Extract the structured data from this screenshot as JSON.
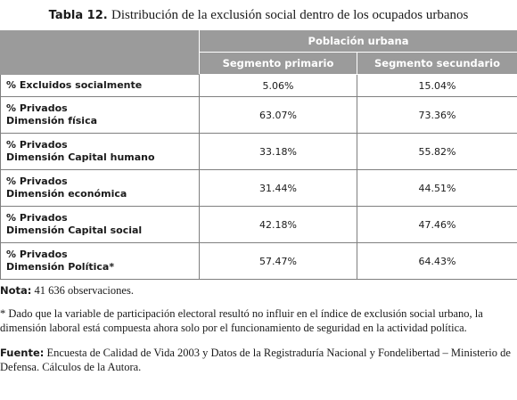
{
  "caption": {
    "label": "Tabla 12.",
    "text": "Distribución de la exclusión social dentro de los ocupados urbanos"
  },
  "table": {
    "group_header": "Población urbana",
    "columns": [
      "Segmento primario",
      "Segmento secundario"
    ],
    "rows": [
      {
        "line1": "% Excluidos socialmente",
        "line2": "",
        "primario": "5.06%",
        "secundario": "15.04%"
      },
      {
        "line1": "% Privados",
        "line2": "Dimensión física",
        "primario": "63.07%",
        "secundario": "73.36%"
      },
      {
        "line1": "% Privados",
        "line2": "Dimensión Capital humano",
        "primario": "33.18%",
        "secundario": "55.82%"
      },
      {
        "line1": "% Privados",
        "line2": "Dimensión económica",
        "primario": "31.44%",
        "secundario": "44.51%"
      },
      {
        "line1": "% Privados",
        "line2": "Dimensión Capital social",
        "primario": "42.18%",
        "secundario": "47.46%"
      },
      {
        "line1": "% Privados",
        "line2": "Dimensión Política*",
        "primario": "57.47%",
        "secundario": "64.43%"
      }
    ]
  },
  "notes": {
    "nota_label": "Nota:",
    "nota_text": " 41 636 observaciones.",
    "footnote": "* Dado que la variable de participación electoral resultó no influir en el índice de exclusión social urbano, la dimensión laboral está compuesta ahora solo por el funcionamiento de seguridad en la actividad política.",
    "fuente_label": "Fuente:",
    "fuente_text": " Encuesta de Calidad de Vida 2003 y Datos de la Registraduría Nacional y Fondelibertad – Ministerio de Defensa. Cálculos de la Autora."
  }
}
